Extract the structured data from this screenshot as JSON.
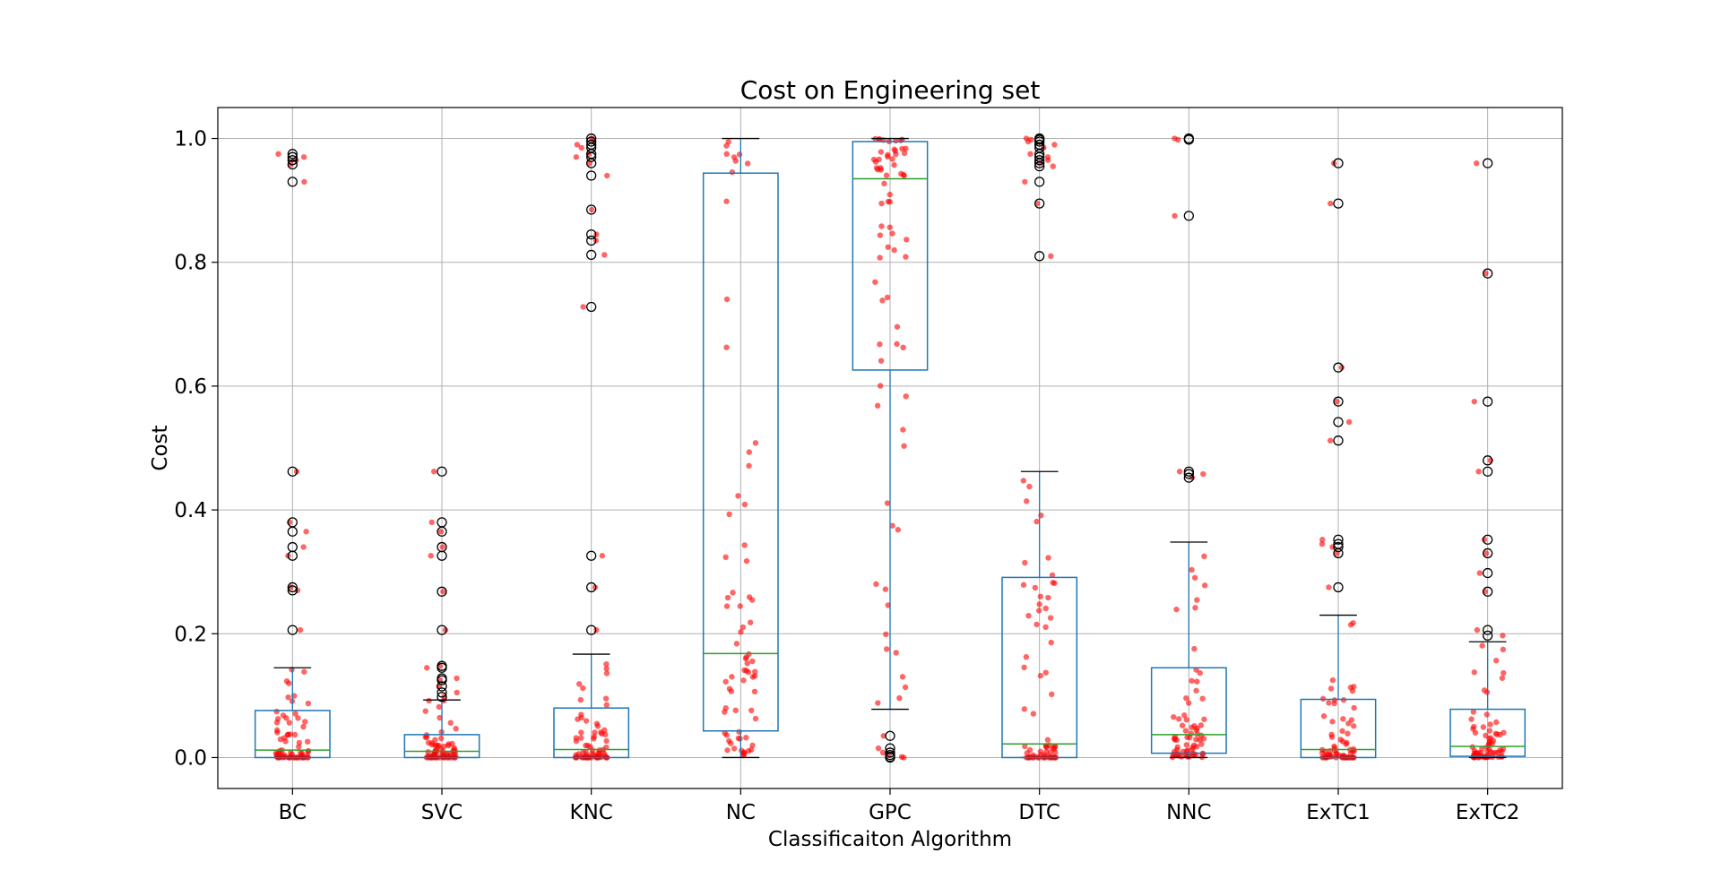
{
  "chart_data": {
    "type": "box",
    "title": "Cost on Engineering set",
    "xlabel": "Classificaiton Algorithm",
    "ylabel": "Cost",
    "ylim": [
      -0.05,
      1.05
    ],
    "yticks": [
      0.0,
      0.2,
      0.4,
      0.6,
      0.8,
      1.0
    ],
    "ytick_labels": [
      "0.0",
      "0.2",
      "0.4",
      "0.6",
      "0.8",
      "1.0"
    ],
    "grid": true,
    "colors": {
      "box": "#1f77b4",
      "median": "#2ca02c",
      "whisker": "#1f77b4",
      "cap": "#000000",
      "flier": "#000000",
      "points": "#ff0000",
      "grid": "#b0b0b0"
    },
    "categories": [
      "BC",
      "SVC",
      "KNC",
      "NC",
      "GPC",
      "DTC",
      "NNC",
      "ExTC1",
      "ExTC2"
    ],
    "boxes": [
      {
        "label": "BC",
        "whislo": 0.0,
        "q1": 0.0,
        "med": 0.012,
        "q3": 0.076,
        "whishi": 0.145,
        "fliers": [
          0.975,
          0.97,
          0.965,
          0.958,
          0.93,
          0.462,
          0.38,
          0.365,
          0.34,
          0.326,
          0.275,
          0.27,
          0.206
        ]
      },
      {
        "label": "SVC",
        "whislo": 0.0,
        "q1": 0.0,
        "med": 0.01,
        "q3": 0.037,
        "whishi": 0.093,
        "fliers": [
          0.462,
          0.38,
          0.365,
          0.34,
          0.326,
          0.268,
          0.206,
          0.148,
          0.145,
          0.128,
          0.125,
          0.115,
          0.105,
          0.098
        ]
      },
      {
        "label": "KNC",
        "whislo": 0.0,
        "q1": 0.0,
        "med": 0.013,
        "q3": 0.08,
        "whishi": 0.167,
        "fliers": [
          1.0,
          0.995,
          0.99,
          0.985,
          0.975,
          0.97,
          0.96,
          0.94,
          0.885,
          0.845,
          0.835,
          0.812,
          0.728,
          0.326,
          0.275,
          0.206
        ]
      },
      {
        "label": "NC",
        "whislo": 0.0,
        "q1": 0.043,
        "med": 0.168,
        "q3": 0.944,
        "whishi": 1.0,
        "fliers": []
      },
      {
        "label": "GPC",
        "whislo": 0.078,
        "q1": 0.626,
        "med": 0.935,
        "q3": 0.995,
        "whishi": 1.0,
        "fliers": [
          0.035,
          0.015,
          0.008,
          0.004,
          0.001,
          0.0
        ]
      },
      {
        "label": "DTC",
        "whislo": 0.0,
        "q1": 0.0,
        "med": 0.022,
        "q3": 0.291,
        "whishi": 0.462,
        "fliers": [
          1.0,
          0.998,
          0.995,
          0.99,
          0.985,
          0.975,
          0.97,
          0.965,
          0.96,
          0.955,
          0.93,
          0.895,
          0.81
        ]
      },
      {
        "label": "NNC",
        "whislo": 0.0,
        "q1": 0.007,
        "med": 0.037,
        "q3": 0.145,
        "whishi": 0.348,
        "fliers": [
          1.0,
          0.998,
          0.875,
          0.462,
          0.458,
          0.452
        ]
      },
      {
        "label": "ExTC1",
        "whislo": 0.0,
        "q1": 0.0,
        "med": 0.013,
        "q3": 0.094,
        "whishi": 0.23,
        "fliers": [
          0.96,
          0.895,
          0.63,
          0.575,
          0.542,
          0.512,
          0.352,
          0.345,
          0.34,
          0.33,
          0.275
        ]
      },
      {
        "label": "ExTC2",
        "whislo": 0.0,
        "q1": 0.002,
        "med": 0.018,
        "q3": 0.078,
        "whishi": 0.187,
        "fliers": [
          0.96,
          0.782,
          0.575,
          0.48,
          0.462,
          0.352,
          0.33,
          0.298,
          0.268,
          0.206,
          0.197
        ]
      }
    ]
  }
}
